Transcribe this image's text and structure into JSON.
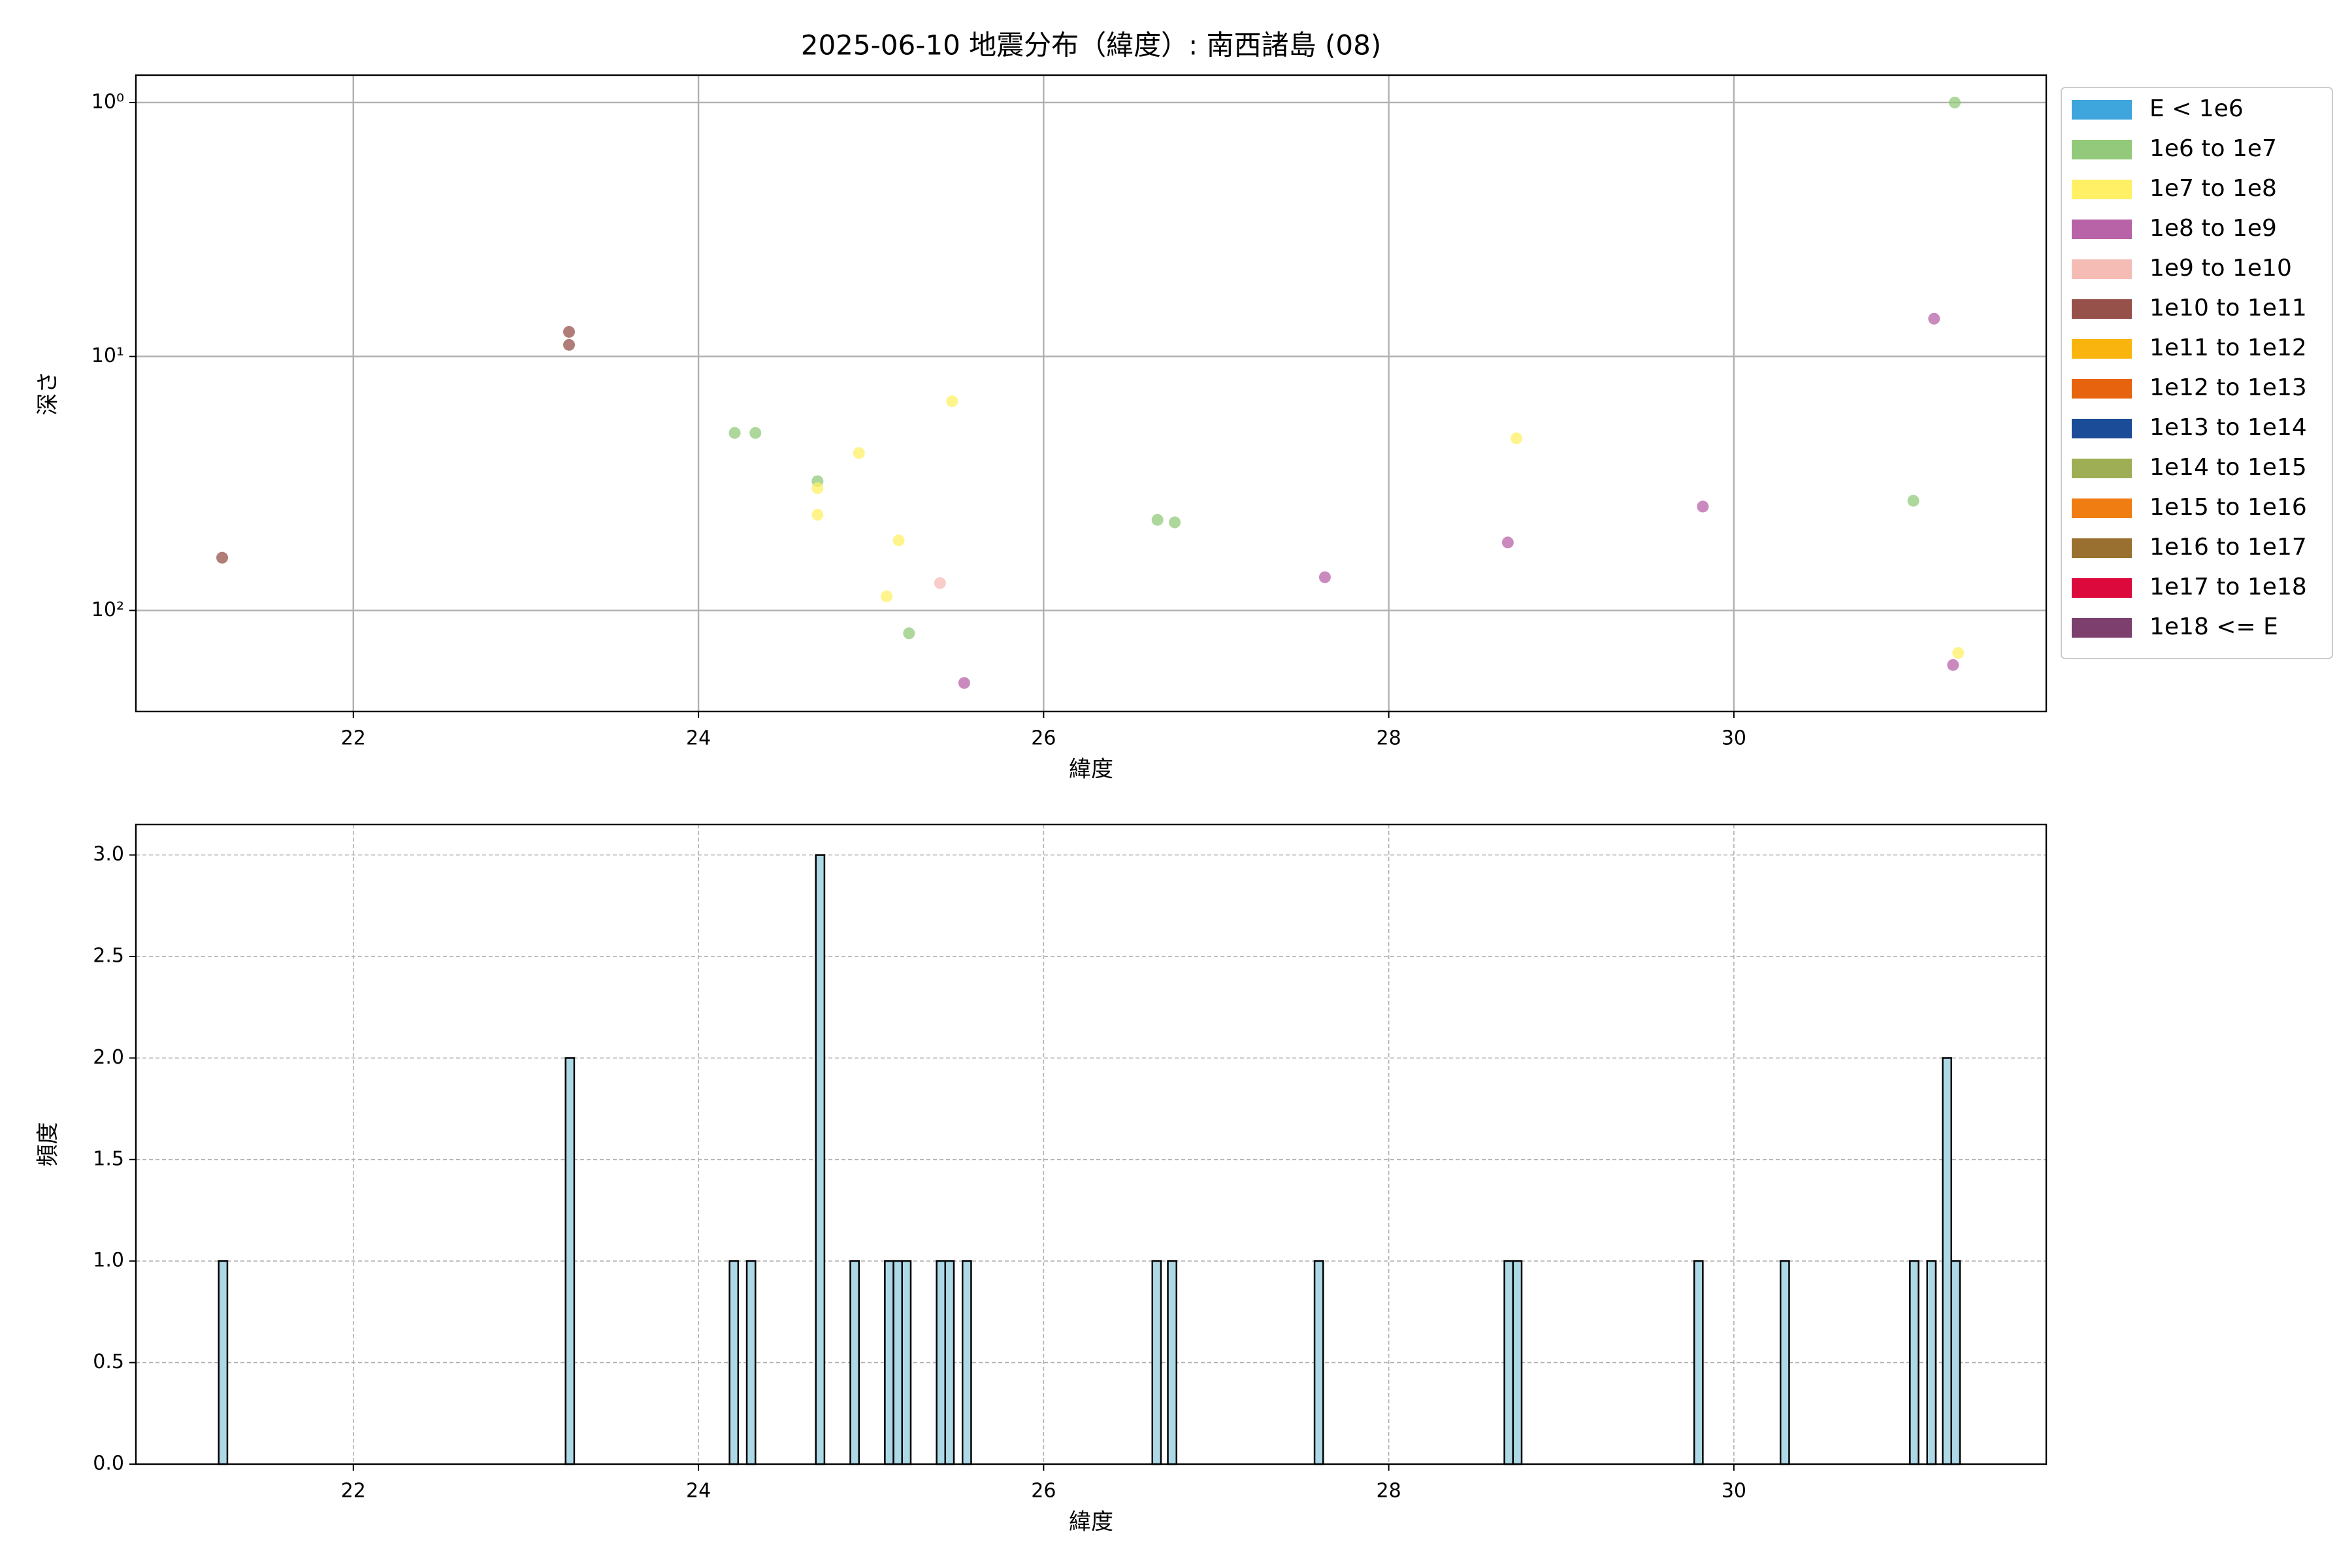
{
  "chart_data": [
    {
      "type": "scatter",
      "title": "2025-06-10 地震分布（緯度）: 南西諸島 (08)",
      "x_label": "緯度",
      "y_label": "深さ",
      "xlim": [
        20.74,
        31.81
      ],
      "xticks": [
        22,
        24,
        26,
        28,
        30
      ],
      "ylim": [
        250,
        0.78
      ],
      "yscale": "log",
      "yticks": [
        {
          "value": 1,
          "label": "10⁰"
        },
        {
          "value": 10,
          "label": "10¹"
        },
        {
          "value": 100,
          "label": "10²"
        }
      ],
      "grid": true,
      "grid_style": "solid",
      "legend": "outside-right",
      "series": [
        {
          "name": "E < 1e6",
          "color": "#3ea6dc",
          "x": [],
          "values": []
        },
        {
          "name": "1e6 to 1e7",
          "color": "#92c97a",
          "x": [
            24.21,
            24.33,
            24.69,
            25.22,
            26.66,
            26.76,
            31.04,
            31.28
          ],
          "values": [
            20,
            20,
            31,
            123,
            44,
            45,
            37,
            1.0
          ]
        },
        {
          "name": "1e7 to 1e8",
          "color": "#fff066",
          "x": [
            24.69,
            24.69,
            24.93,
            25.16,
            25.09,
            25.47,
            28.74,
            31.3
          ],
          "values": [
            33,
            42,
            24,
            53,
            88,
            15,
            21,
            147
          ]
        },
        {
          "name": "1e8 to 1e9",
          "color": "#b863a7",
          "x": [
            25.54,
            27.63,
            28.69,
            29.82,
            31.16,
            31.27
          ],
          "values": [
            193,
            74,
            54,
            39,
            7.1,
            164
          ]
        },
        {
          "name": "1e9 to 1e10",
          "color": "#f5bcb5",
          "x": [
            25.4
          ],
          "values": [
            78
          ]
        },
        {
          "name": "1e10 to 1e11",
          "color": "#97514b",
          "x": [
            21.24,
            23.25,
            23.25
          ],
          "values": [
            62,
            8.0,
            9.0
          ]
        },
        {
          "name": "1e11 to 1e12",
          "color": "#f9b40e",
          "x": [],
          "values": []
        },
        {
          "name": "1e12 to 1e13",
          "color": "#e8630d",
          "x": [],
          "values": []
        },
        {
          "name": "1e13 to 1e14",
          "color": "#1b4c97",
          "x": [],
          "values": []
        },
        {
          "name": "1e14 to 1e15",
          "color": "#9dae54",
          "x": [],
          "values": []
        },
        {
          "name": "1e15 to 1e16",
          "color": "#f07d11",
          "x": [],
          "values": []
        },
        {
          "name": "1e16 to 1e17",
          "color": "#9a7030",
          "x": [],
          "values": []
        },
        {
          "name": "1e17 to 1e18",
          "color": "#dc0a3c",
          "x": [],
          "values": []
        },
        {
          "name": "1e18 <= E",
          "color": "#7c3f6e",
          "x": [],
          "values": []
        }
      ]
    },
    {
      "type": "histogram",
      "x_label": "緯度",
      "y_label": "頻度",
      "xlim": [
        20.74,
        31.81
      ],
      "xticks": [
        22,
        24,
        26,
        28,
        30
      ],
      "ylim": [
        0,
        3.15
      ],
      "yticks": [
        {
          "value": 0,
          "label": "0.0"
        },
        {
          "value": 0.5,
          "label": "0.5"
        },
        {
          "value": 1,
          "label": "1.0"
        },
        {
          "value": 1.5,
          "label": "1.5"
        },
        {
          "value": 2,
          "label": "2.0"
        },
        {
          "value": 2.5,
          "label": "2.5"
        },
        {
          "value": 3,
          "label": "3.0"
        }
      ],
      "grid": true,
      "grid_style": "dashed",
      "color": "#add8e6",
      "edgecolor": "#000000",
      "bins": [
        21.22,
        21.27,
        23.23,
        23.28,
        24.18,
        24.23,
        24.28,
        24.33,
        24.68,
        24.73,
        24.88,
        24.93,
        25.08,
        25.13,
        25.18,
        25.23,
        25.38,
        25.43,
        25.48,
        25.53,
        25.58,
        26.63,
        26.68,
        26.72,
        26.77,
        27.57,
        27.62,
        28.67,
        28.72,
        28.77,
        29.77,
        29.82,
        30.27,
        30.32,
        31.02,
        31.07,
        31.12,
        31.17,
        31.21,
        31.26,
        31.31
      ],
      "values": [
        1,
        0,
        2,
        0,
        1,
        0,
        1,
        0,
        3,
        0,
        1,
        0,
        1,
        1,
        1,
        0,
        1,
        1,
        0,
        1,
        0,
        1,
        0,
        1,
        0,
        1,
        0,
        1,
        1,
        0,
        1,
        0,
        1,
        0,
        1,
        0,
        1,
        0,
        2,
        1
      ]
    }
  ]
}
